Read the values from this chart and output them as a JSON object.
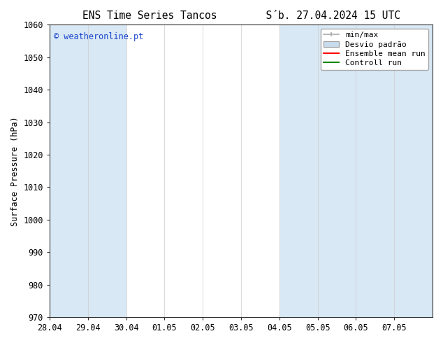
{
  "title_part1": "ENS Time Series Tancos",
  "title_part2": "S´b. 27.04.2024 15 UTC",
  "ylabel": "Surface Pressure (hPa)",
  "ylim": [
    970,
    1060
  ],
  "yticks": [
    970,
    980,
    990,
    1000,
    1010,
    1020,
    1030,
    1040,
    1050,
    1060
  ],
  "xtick_labels": [
    "28.04",
    "29.04",
    "30.04",
    "01.05",
    "02.05",
    "03.05",
    "04.05",
    "05.05",
    "06.05",
    "07.05"
  ],
  "watermark": "© weatheronline.pt",
  "watermark_color": "#1a44cc",
  "bg_color": "#ffffff",
  "shaded_color": "#d8e8f5",
  "shaded_regions_idx": [
    0,
    1,
    6,
    7,
    8,
    9
  ],
  "legend_minmax_color": "#aaaaaa",
  "legend_band_facecolor": "#c8dced",
  "legend_band_edgecolor": "#999999",
  "legend_ens_color": "#ff0000",
  "legend_ctrl_color": "#008800",
  "font_family": "DejaVu Sans Mono",
  "font_size": 8.5,
  "title_font_size": 10.5,
  "tick_color": "#333333",
  "spine_color": "#333333",
  "grid_color": "#cccccc"
}
